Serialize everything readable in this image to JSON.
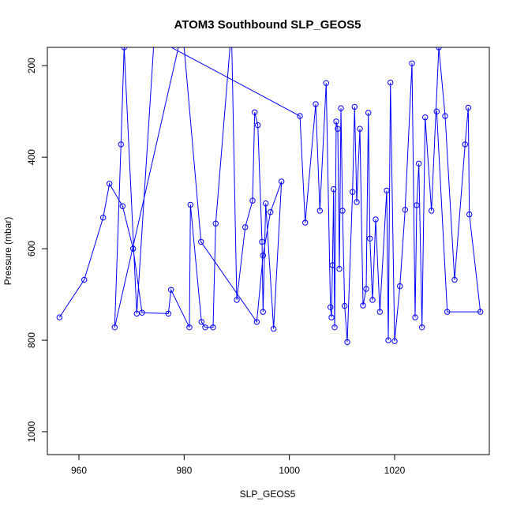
{
  "chart_data": {
    "type": "line",
    "title": "ATOM3 Southbound SLP_GEOS5",
    "xlabel": "SLP_GEOS5",
    "ylabel": "Pressure (mbar)",
    "xlim": [
      954,
      1038
    ],
    "ylim": [
      1050,
      160
    ],
    "y_reversed": true,
    "x_ticks": [
      960,
      980,
      1000,
      1020
    ],
    "y_ticks": [
      200,
      400,
      600,
      800,
      1000
    ],
    "grid": false,
    "markers": "open-circle",
    "series_color": "#0000ff",
    "x": [
      956.3,
      961.0,
      964.6,
      965.8,
      968.3,
      970.3,
      972.0,
      977.0,
      977.5,
      981.0,
      981.2,
      983.3,
      984.0,
      985.5,
      986.0,
      989.0,
      990.0,
      991.6,
      993.0,
      993.4,
      994.0,
      994.8,
      995.0,
      995.5,
      997.0,
      998.5,
      996.4,
      995.0,
      993.8,
      983.2,
      979.7,
      966.8,
      968.0,
      968.6,
      971.0,
      974.3,
      1002.0,
      1003.0,
      1005.0,
      1005.8,
      1007.0,
      1007.8,
      1008.0,
      1008.2,
      1008.4,
      1008.6,
      1008.9,
      1009.2,
      1009.5,
      1009.8,
      1010.1,
      1010.5,
      1011.0,
      1012.0,
      1012.4,
      1012.8,
      1013.4,
      1014.0,
      1014.6,
      1015.0,
      1015.3,
      1015.8,
      1016.4,
      1017.2,
      1018.5,
      1018.8,
      1019.2,
      1020.0,
      1021.0,
      1022.0,
      1023.3,
      1023.9,
      1024.2,
      1024.6,
      1025.2,
      1025.8,
      1027.0,
      1028.4,
      1029.6,
      1031.4,
      1033.4,
      1034.0,
      1034.2,
      1036.3,
      1030.0,
      1028.0
    ],
    "y": [
      750,
      668,
      532,
      458,
      507,
      600,
      740,
      742,
      690,
      772,
      504,
      760,
      772,
      772,
      545,
      120,
      712,
      553,
      495,
      302,
      330,
      585,
      738,
      501,
      775,
      453,
      520,
      615,
      760,
      585,
      120,
      772,
      372,
      160,
      742,
      140,
      310,
      543,
      284,
      517,
      238,
      728,
      750,
      636,
      470,
      772,
      322,
      338,
      644,
      293,
      517,
      725,
      804,
      476,
      290,
      498,
      338,
      724,
      688,
      303,
      578,
      712,
      536,
      738,
      473,
      800,
      237,
      802,
      682,
      515,
      195,
      750,
      505,
      414,
      772,
      313,
      517,
      160,
      310,
      668,
      372,
      292,
      525,
      738,
      738,
      300
    ],
    "arrows": []
  }
}
